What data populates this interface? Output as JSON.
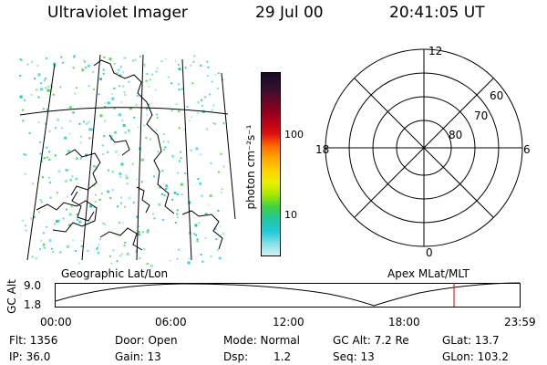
{
  "header": {
    "instrument": "Ultraviolet Imager",
    "date": "29 Jul 00",
    "time": "20:41:05 UT"
  },
  "colorbar": {
    "unit_label": "photon cm⁻²s⁻¹",
    "ticks": [
      "100",
      "10"
    ],
    "colors": [
      "#1a0a20",
      "#2a1030",
      "#5a0a2a",
      "#8a0020",
      "#b80018",
      "#e01010",
      "#ff6a00",
      "#ffa800",
      "#ffd000",
      "#e8f000",
      "#a8e800",
      "#40d040",
      "#20c8a0",
      "#20c8d8",
      "#80e0e8",
      "#d8f0f0"
    ]
  },
  "polar": {
    "mlt_labels": {
      "top": "12",
      "left": "18",
      "right": "6",
      "bottom": "0"
    },
    "lat_labels": [
      "60",
      "70",
      "80"
    ]
  },
  "captions": {
    "left": "Geographic Lat/Lon",
    "right": "Apex MLat/MLT"
  },
  "altitude_plot": {
    "ylabel": "GC Alt",
    "yticks": [
      "9.0",
      "1.8"
    ],
    "xticks": [
      "00:00",
      "06:00",
      "12:00",
      "18:00",
      "23:59"
    ]
  },
  "footer": {
    "flt": "Flt: 1356",
    "ip": "IP: 36.0",
    "door": "Door: Open",
    "gain": "Gain: 13",
    "mode": "Mode: Normal",
    "dsp_label": "Dsp:",
    "dsp_value": "1.2",
    "gc_alt": "GC Alt: 7.2 Re",
    "seq": "Seq: 13",
    "glat": "GLat: 13.7",
    "glon": "GLon: 103.2"
  }
}
